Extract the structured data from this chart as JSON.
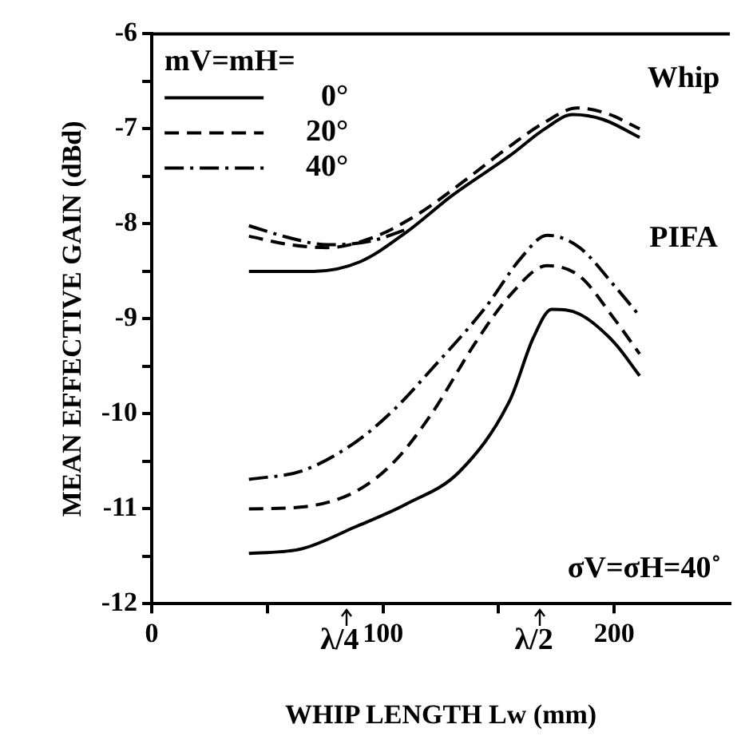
{
  "chart_data": {
    "type": "line",
    "xlabel": "WHIP LENGTH Lw (mm)",
    "ylabel": "MEAN EFFECTIVE GAIN (dBd)",
    "legend_title": "mV=mH=",
    "xlim": [
      0,
      250
    ],
    "xticks": [
      0,
      {
        "value": 50,
        "label": null
      },
      100,
      {
        "value": 150,
        "label": null
      },
      200
    ],
    "ylim": [
      -12,
      -6
    ],
    "yticks": [
      -12,
      {
        "value": -11.5,
        "label": null
      },
      -11,
      {
        "value": -10.5,
        "label": null
      },
      -10,
      {
        "value": -9.5,
        "label": null
      },
      -9,
      {
        "value": -8.5,
        "label": null
      },
      -8,
      {
        "value": -7.5,
        "label": null
      },
      -7,
      {
        "value": -6.5,
        "label": null
      },
      -6
    ],
    "grid": false,
    "legend": "top left",
    "marker": "none",
    "series": [
      {
        "name": "0°",
        "color": "#000000",
        "line_style": "solid",
        "x": [
          42,
          70,
          90,
          110,
          130,
          155,
          170,
          182,
          195,
          211
        ],
        "values": [
          -8.5,
          -8.5,
          -8.4,
          -8.09,
          -7.7,
          -7.28,
          -7.0,
          -6.85,
          -6.9,
          -7.09
        ]
      },
      {
        "name": "20°",
        "color": "#000000",
        "line_style": "dashed",
        "x": [
          42,
          60,
          76,
          95,
          115,
          135,
          155,
          170,
          184,
          197,
          211
        ],
        "values": [
          -8.13,
          -8.22,
          -8.25,
          -8.15,
          -7.9,
          -7.55,
          -7.18,
          -6.93,
          -6.78,
          -6.84,
          -7.0
        ]
      },
      {
        "name": "40°",
        "color": "#000000",
        "line_style": "dashdot",
        "x": [
          42,
          60,
          76,
          95,
          110
        ],
        "values": [
          -8.02,
          -8.15,
          -8.22,
          -8.18,
          -8.06
        ]
      },
      {
        "color": "#000000",
        "line_style": "solid",
        "x": [
          42,
          65,
          88,
          110,
          133,
          155,
          165,
          173,
          185,
          200,
          211
        ],
        "values": [
          -11.47,
          -11.42,
          -11.19,
          -10.95,
          -10.61,
          -9.85,
          -9.2,
          -8.9,
          -8.95,
          -9.25,
          -9.6
        ]
      },
      {
        "color": "#000000",
        "line_style": "dashed",
        "x": [
          42,
          65,
          88,
          105,
          121,
          140,
          155,
          171,
          185,
          200,
          211
        ],
        "values": [
          -11.0,
          -10.98,
          -10.82,
          -10.5,
          -10.0,
          -9.25,
          -8.75,
          -8.44,
          -8.55,
          -9.0,
          -9.37
        ]
      },
      {
        "color": "#000000",
        "line_style": "dashdot",
        "x": [
          42,
          65,
          88,
          105,
          121,
          144,
          160,
          171,
          185,
          200,
          211
        ],
        "values": [
          -10.69,
          -10.6,
          -10.3,
          -9.95,
          -9.53,
          -8.89,
          -8.35,
          -8.12,
          -8.25,
          -8.65,
          -8.97
        ]
      }
    ],
    "annotations": [
      "Whip",
      "PIFA",
      "σV=σH=40˚",
      "λ/4",
      "λ/2"
    ]
  }
}
